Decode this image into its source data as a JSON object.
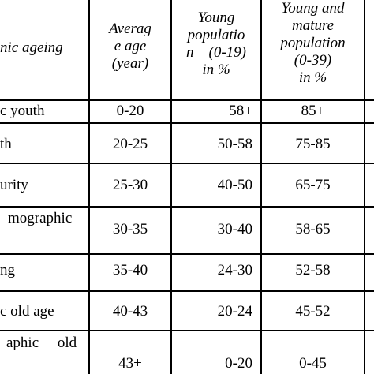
{
  "header": {
    "col1": "nic ageing",
    "col2": [
      "Averag",
      "e age",
      "(year)"
    ],
    "col3": [
      "Young",
      "populatio",
      "n    (0-19)",
      "in %"
    ],
    "col4": [
      "Young and",
      "mature",
      "population",
      "(0-39)",
      "in %"
    ]
  },
  "rows": [
    {
      "stage": "c youth",
      "avg_age": "0-20",
      "young": "58+",
      "young_mature": "85+"
    },
    {
      "stage": "th",
      "avg_age": "20-25",
      "young": "50-58",
      "young_mature": "75-85"
    },
    {
      "stage": "urity",
      "avg_age": "25-30",
      "young": "40-50",
      "young_mature": "65-75"
    },
    {
      "stage": "mographic",
      "avg_age": "30-35",
      "young": "30-40",
      "young_mature": "58-65"
    },
    {
      "stage": "ng",
      "avg_age": "35-40",
      "young": "24-30",
      "young_mature": "52-58"
    },
    {
      "stage": "c old age",
      "avg_age": "40-43",
      "young": "20-24",
      "young_mature": "45-52"
    },
    {
      "stage": "aphic     old",
      "avg_age": "43+",
      "young": "0-20",
      "young_mature": "0-45"
    }
  ]
}
